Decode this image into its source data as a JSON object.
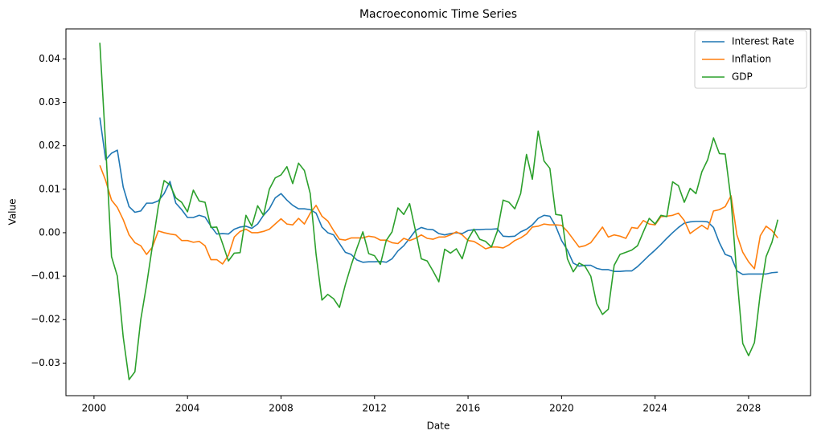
{
  "chart_data": {
    "type": "line",
    "title": "Macroeconomic Time Series",
    "xlabel": "Date",
    "ylabel": "Value",
    "x": [
      2000.25,
      2000.5,
      2000.75,
      2001,
      2001.25,
      2001.5,
      2001.75,
      2002,
      2002.25,
      2002.5,
      2002.75,
      2003,
      2003.25,
      2003.5,
      2003.75,
      2004,
      2004.25,
      2004.5,
      2004.75,
      2005,
      2005.25,
      2005.5,
      2005.75,
      2006,
      2006.25,
      2006.5,
      2006.75,
      2007,
      2007.25,
      2007.5,
      2007.75,
      2008,
      2008.25,
      2008.5,
      2008.75,
      2009,
      2009.25,
      2009.5,
      2009.75,
      2010,
      2010.25,
      2010.5,
      2010.75,
      2011,
      2011.25,
      2011.5,
      2011.75,
      2012,
      2012.25,
      2012.5,
      2012.75,
      2013,
      2013.25,
      2013.5,
      2013.75,
      2014,
      2014.25,
      2014.5,
      2014.75,
      2015,
      2015.25,
      2015.5,
      2015.75,
      2016,
      2016.25,
      2016.5,
      2016.75,
      2017,
      2017.25,
      2017.5,
      2017.75,
      2018,
      2018.25,
      2018.5,
      2018.75,
      2019,
      2019.25,
      2019.5,
      2019.75,
      2020,
      2020.25,
      2020.5,
      2020.75,
      2021,
      2021.25,
      2021.5,
      2021.75,
      2022,
      2022.25,
      2022.5,
      2022.75,
      2023,
      2023.25,
      2023.5,
      2023.75,
      2024,
      2024.25,
      2024.5,
      2024.75,
      2025,
      2025.25,
      2025.5,
      2025.75,
      2026,
      2026.25,
      2026.5,
      2026.75,
      2027,
      2027.25,
      2027.5,
      2027.75,
      2028,
      2028.25,
      2028.5,
      2028.75,
      2029,
      2029.25
    ],
    "series": [
      {
        "name": "Interest Rate",
        "color": "#1f77b4",
        "values": [
          0.0265,
          0.0168,
          0.0183,
          0.019,
          0.0105,
          0.006,
          0.0047,
          0.005,
          0.0068,
          0.0068,
          0.0073,
          0.009,
          0.0118,
          0.0068,
          0.0053,
          0.0035,
          0.0035,
          0.004,
          0.0036,
          0.0015,
          -0.0003,
          -0.0002,
          -0.0003,
          0.0008,
          0.0013,
          0.0015,
          0.001,
          0.002,
          0.004,
          0.0055,
          0.008,
          0.009,
          0.0075,
          0.0063,
          0.0055,
          0.0055,
          0.0053,
          0.0045,
          0.0013,
          0,
          -0.0005,
          -0.0025,
          -0.0045,
          -0.005,
          -0.0063,
          -0.0068,
          -0.0067,
          -0.0067,
          -0.0066,
          -0.0068,
          -0.006,
          -0.0042,
          -0.003,
          -0.0013,
          0.0005,
          0.0012,
          0.0008,
          0.0007,
          -0.0002,
          -0.0005,
          -0.0002,
          0,
          -0.0002,
          0.0005,
          0.0007,
          0.0007,
          0.0008,
          0.0008,
          0.0009,
          -0.0008,
          -0.0009,
          -0.0008,
          0.0002,
          0.0008,
          0.0018,
          0.0033,
          0.004,
          0.0038,
          0.0015,
          -0.0018,
          -0.004,
          -0.007,
          -0.0077,
          -0.0075,
          -0.0075,
          -0.0082,
          -0.0085,
          -0.0085,
          -0.0089,
          -0.0089,
          -0.0088,
          -0.0088,
          -0.0078,
          -0.0065,
          -0.0052,
          -0.004,
          -0.0027,
          -0.0013,
          0,
          0.0012,
          0.0022,
          0.0025,
          0.0026,
          0.0026,
          0.0025,
          0.0012,
          -0.0023,
          -0.005,
          -0.0055,
          -0.0088,
          -0.0096,
          -0.0095,
          -0.0095,
          -0.0095,
          -0.0095,
          -0.0092,
          -0.0091
        ]
      },
      {
        "name": "Inflation",
        "color": "#ff7f0e",
        "values": [
          0.0155,
          0.012,
          0.0075,
          0.0058,
          0.003,
          -0.0005,
          -0.0023,
          -0.003,
          -0.005,
          -0.0033,
          0.0004,
          0,
          -0.0003,
          -0.0005,
          -0.0018,
          -0.0018,
          -0.0022,
          -0.002,
          -0.003,
          -0.0062,
          -0.0062,
          -0.0072,
          -0.0052,
          -0.001,
          0.0003,
          0.0008,
          0,
          0,
          0.0003,
          0.0008,
          0.002,
          0.0032,
          0.002,
          0.0018,
          0.0033,
          0.002,
          0.0045,
          0.0063,
          0.0038,
          0.0027,
          0.0005,
          -0.0015,
          -0.0017,
          -0.0012,
          -0.0012,
          -0.0012,
          -0.0008,
          -0.001,
          -0.0017,
          -0.0017,
          -0.0023,
          -0.0025,
          -0.0013,
          -0.0018,
          -0.0013,
          -0.0005,
          -0.0013,
          -0.0015,
          -0.001,
          -0.001,
          -0.0005,
          0.0002,
          -0.0005,
          -0.0018,
          -0.002,
          -0.0028,
          -0.0037,
          -0.0033,
          -0.0033,
          -0.0035,
          -0.0028,
          -0.0018,
          -0.0012,
          -0.0003,
          0.0013,
          0.0015,
          0.002,
          0.0018,
          0.0018,
          0.0017,
          0.0003,
          -0.0015,
          -0.0033,
          -0.003,
          -0.0023,
          -0.0005,
          0.0013,
          -0.001,
          -0.0005,
          -0.0008,
          -0.0013,
          0.0012,
          0.001,
          0.0028,
          0.002,
          0.0018,
          0.0037,
          0.0038,
          0.004,
          0.0045,
          0.0028,
          -0.0002,
          0.0008,
          0.0017,
          0.0008,
          0.005,
          0.0053,
          0.006,
          0.0085,
          -0.0005,
          -0.0045,
          -0.0067,
          -0.0083,
          -0.0007,
          0.0015,
          0.0005,
          -0.0012
        ]
      },
      {
        "name": "GDP",
        "color": "#2ca02c",
        "values": [
          0.0437,
          0.02,
          -0.0055,
          -0.01,
          -0.024,
          -0.0338,
          -0.032,
          -0.02,
          -0.012,
          -0.003,
          0.006,
          0.012,
          0.011,
          0.008,
          0.007,
          0.0048,
          0.0098,
          0.0073,
          0.007,
          0.0012,
          0.0013,
          -0.0025,
          -0.0065,
          -0.0047,
          -0.0046,
          0.004,
          0.0015,
          0.0062,
          0.004,
          0.01,
          0.0126,
          0.0133,
          0.0152,
          0.0113,
          0.016,
          0.0143,
          0.009,
          -0.005,
          -0.0155,
          -0.0142,
          -0.0152,
          -0.0172,
          -0.012,
          -0.0075,
          -0.0035,
          0.0002,
          -0.0048,
          -0.0053,
          -0.0073,
          -0.0018,
          0.0002,
          0.0057,
          0.0042,
          0.0067,
          0.0005,
          -0.006,
          -0.0065,
          -0.0088,
          -0.0113,
          -0.0038,
          -0.0047,
          -0.0037,
          -0.006,
          -0.0015,
          0.0008,
          -0.0015,
          -0.002,
          -0.0033,
          0.0003,
          0.0075,
          0.007,
          0.0055,
          0.009,
          0.018,
          0.0123,
          0.0234,
          0.0165,
          0.0148,
          0.0042,
          0.004,
          -0.006,
          -0.009,
          -0.007,
          -0.0077,
          -0.01,
          -0.0163,
          -0.0188,
          -0.0176,
          -0.0075,
          -0.005,
          -0.0045,
          -0.004,
          -0.003,
          0.0002,
          0.0033,
          0.002,
          0.004,
          0.0037,
          0.0117,
          0.0108,
          0.007,
          0.0102,
          0.009,
          0.014,
          0.0168,
          0.0218,
          0.0182,
          0.0181,
          0.0075,
          -0.01,
          -0.0255,
          -0.0283,
          -0.0253,
          -0.014,
          -0.0055,
          -0.0022,
          0.003
        ]
      }
    ],
    "xlim": [
      1998.8,
      2030.65
    ],
    "xticks": [
      2000,
      2004,
      2008,
      2012,
      2016,
      2020,
      2024,
      2028
    ],
    "ylim": [
      -0.0375,
      0.0469
    ],
    "yticks": [
      {
        "value": -0.03,
        "label": "−0.03"
      },
      {
        "value": -0.02,
        "label": "−0.02"
      },
      {
        "value": -0.01,
        "label": "−0.01"
      },
      {
        "value": 0,
        "label": "0.00"
      },
      {
        "value": 0.01,
        "label": "0.01"
      },
      {
        "value": 0.02,
        "label": "0.02"
      },
      {
        "value": 0.03,
        "label": "0.03"
      },
      {
        "value": 0.04,
        "label": "0.04"
      }
    ],
    "legend": "upper right",
    "grid": false
  }
}
